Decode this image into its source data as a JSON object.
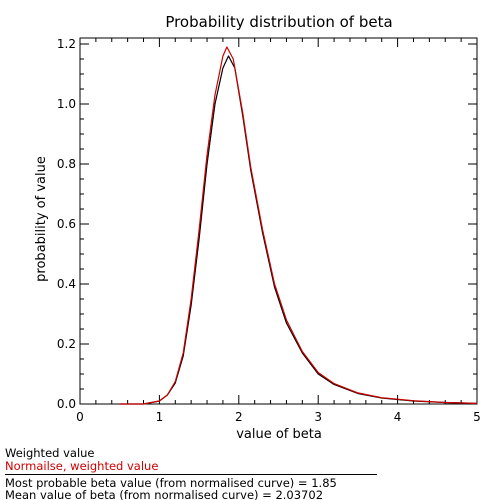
{
  "chart_data": {
    "type": "line",
    "title": "Probability distribution of beta",
    "xlabel": "value of beta",
    "ylabel": "probability of value",
    "xlim": [
      0,
      5
    ],
    "ylim": [
      0,
      1.22
    ],
    "x_ticks": [
      "0",
      "1",
      "2",
      "3",
      "4",
      "5"
    ],
    "y_ticks": [
      "0.0",
      "0.2",
      "0.4",
      "0.6",
      "0.8",
      "1.0",
      "1.2"
    ],
    "grid": false,
    "series": [
      {
        "name": "Weighted value",
        "color": "#000000",
        "x": [
          0.5,
          0.8,
          1.0,
          1.1,
          1.2,
          1.3,
          1.4,
          1.5,
          1.6,
          1.7,
          1.8,
          1.87,
          1.95,
          2.05,
          2.15,
          2.3,
          2.45,
          2.6,
          2.8,
          3.0,
          3.2,
          3.5,
          3.8,
          4.2,
          4.6,
          5.0
        ],
        "y": [
          0.0,
          0.0,
          0.01,
          0.03,
          0.07,
          0.16,
          0.33,
          0.55,
          0.8,
          1.0,
          1.12,
          1.16,
          1.12,
          0.96,
          0.78,
          0.57,
          0.39,
          0.27,
          0.17,
          0.1,
          0.065,
          0.035,
          0.02,
          0.01,
          0.005,
          0.002
        ]
      },
      {
        "name": "Normailse, weighted value",
        "color": "#cc0000",
        "x": [
          0.5,
          0.8,
          1.0,
          1.1,
          1.2,
          1.3,
          1.4,
          1.5,
          1.6,
          1.7,
          1.8,
          1.85,
          1.93,
          2.05,
          2.15,
          2.3,
          2.45,
          2.6,
          2.8,
          3.0,
          3.2,
          3.5,
          3.8,
          4.2,
          4.6,
          5.0
        ],
        "y": [
          0.0,
          0.0,
          0.01,
          0.03,
          0.075,
          0.17,
          0.35,
          0.58,
          0.83,
          1.03,
          1.16,
          1.19,
          1.15,
          0.97,
          0.79,
          0.58,
          0.4,
          0.28,
          0.175,
          0.105,
          0.068,
          0.037,
          0.021,
          0.011,
          0.005,
          0.002
        ]
      }
    ],
    "legend": {
      "placement": "bottom-left",
      "items": [
        {
          "label": "Weighted value",
          "color": "#000000"
        },
        {
          "label": "Normailse, weighted value",
          "color": "#cc0000"
        }
      ]
    },
    "annotations": [
      "Most probable beta value (from normalised curve) = 1.85",
      "Mean value of beta (from normalised curve) = 2.03702"
    ]
  }
}
